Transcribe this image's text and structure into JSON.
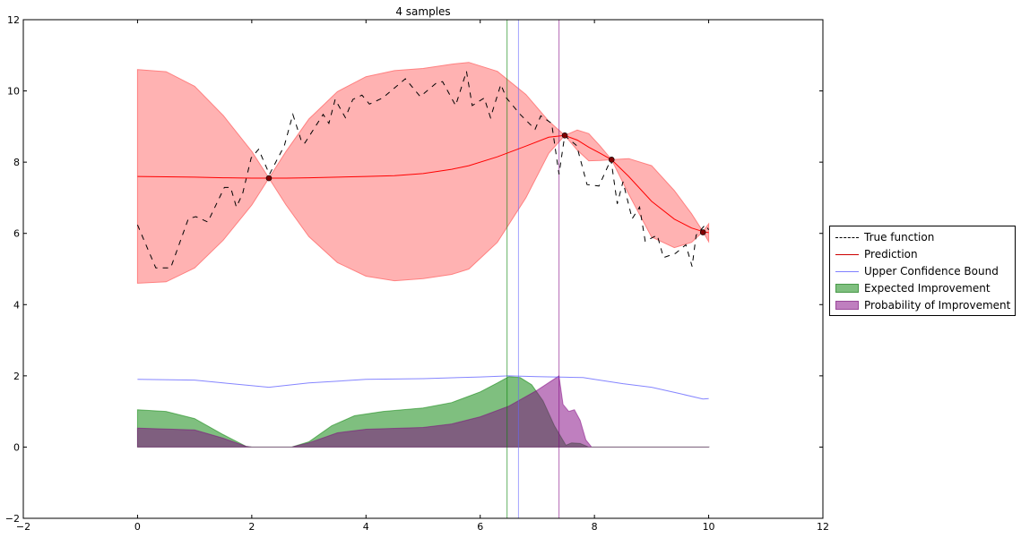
{
  "chart_data": {
    "type": "line",
    "title": "4 samples",
    "xlabel": "",
    "ylabel": "",
    "xlim": [
      -2,
      12
    ],
    "ylim": [
      -2,
      12
    ],
    "xticks": [
      "−2",
      "0",
      "2",
      "4",
      "6",
      "8",
      "10",
      "12"
    ],
    "yticks": [
      "−2",
      "0",
      "2",
      "4",
      "6",
      "8",
      "10",
      "12"
    ],
    "xtick_values": [
      -2,
      0,
      2,
      4,
      6,
      8,
      10,
      12
    ],
    "ytick_values": [
      -2,
      0,
      2,
      4,
      6,
      8,
      10,
      12
    ],
    "grid": false,
    "legend_placement": "right",
    "colors": {
      "true": "#000000",
      "pred": "#ff0000",
      "band": "#ff6666",
      "ucb": "#6666ff",
      "ei": "#008000",
      "pi": "#800080",
      "sample": "#800000"
    },
    "true_function": {
      "name": "True function",
      "x": [
        0,
        0.32,
        0.58,
        0.89,
        1.02,
        1.23,
        1.52,
        1.63,
        1.73,
        1.84,
        1.99,
        2.12,
        2.31,
        2.57,
        2.72,
        2.88,
        2.93,
        3.25,
        3.35,
        3.46,
        3.64,
        3.77,
        3.93,
        4.06,
        4.29,
        4.69,
        4.95,
        5.23,
        5.34,
        5.57,
        5.76,
        5.86,
        6.07,
        6.18,
        6.36,
        6.46,
        6.7,
        6.96,
        7.06,
        7.25,
        7.38,
        7.48,
        7.69,
        7.87,
        8.08,
        8.29,
        8.4,
        8.5,
        8.66,
        8.79,
        8.89,
        9.1,
        9.21,
        9.42,
        9.6,
        9.71,
        9.78,
        9.94,
        10
      ],
      "y": [
        6.24,
        5.03,
        5.03,
        6.41,
        6.47,
        6.32,
        7.29,
        7.29,
        6.74,
        7.12,
        8.12,
        8.36,
        7.66,
        8.46,
        9.34,
        8.54,
        8.54,
        9.34,
        9.09,
        9.76,
        9.25,
        9.76,
        9.88,
        9.63,
        9.8,
        10.34,
        9.84,
        10.22,
        10.26,
        9.59,
        10.55,
        9.59,
        9.8,
        9.25,
        10.18,
        9.8,
        9.34,
        8.92,
        9.3,
        9.09,
        7.66,
        8.75,
        8.46,
        7.37,
        7.33,
        8.08,
        6.83,
        7.45,
        6.41,
        6.74,
        5.78,
        5.95,
        5.32,
        5.44,
        5.68,
        5.07,
        5.95,
        6.24,
        6.1
      ]
    },
    "prediction": {
      "name": "Prediction",
      "x": [
        0,
        0.5,
        1,
        1.5,
        2,
        2.3,
        2.6,
        3,
        3.5,
        4,
        4.5,
        5,
        5.5,
        5.8,
        6.3,
        6.8,
        7.2,
        7.48,
        7.7,
        7.9,
        8.1,
        8.3,
        8.6,
        9,
        9.4,
        9.7,
        9.9,
        10
      ],
      "mean": [
        7.6,
        7.59,
        7.58,
        7.56,
        7.55,
        7.55,
        7.55,
        7.56,
        7.58,
        7.6,
        7.62,
        7.68,
        7.8,
        7.9,
        8.15,
        8.45,
        8.7,
        8.75,
        8.62,
        8.42,
        8.25,
        8.07,
        7.6,
        6.9,
        6.4,
        6.15,
        6.05,
        6.02
      ],
      "std": [
        3.0,
        2.95,
        2.55,
        1.75,
        0.75,
        0,
        0.75,
        1.65,
        2.4,
        2.8,
        2.95,
        2.95,
        2.95,
        2.9,
        2.4,
        1.45,
        0.45,
        0,
        0.28,
        0.38,
        0.2,
        0,
        0.5,
        1.0,
        0.8,
        0.4,
        0,
        0.25
      ]
    },
    "samples": {
      "x": [
        2.3,
        7.48,
        8.3,
        9.9
      ],
      "y": [
        7.55,
        8.75,
        8.07,
        6.03
      ]
    },
    "ucb": {
      "name": "Upper Confidence Bound",
      "x": [
        0,
        1,
        1.5,
        2.3,
        3,
        4,
        5,
        6,
        6.5,
        7,
        7.5,
        7.8,
        8,
        8.5,
        9,
        9.5,
        9.9,
        10
      ],
      "y": [
        1.9,
        1.88,
        1.8,
        1.68,
        1.8,
        1.9,
        1.92,
        1.97,
        2.0,
        1.98,
        1.96,
        1.95,
        1.9,
        1.78,
        1.68,
        1.5,
        1.35,
        1.36
      ]
    },
    "ei": {
      "name": "Expected Improvement",
      "x": [
        0,
        0.5,
        1,
        1.5,
        1.9,
        2,
        2.7,
        3,
        3.4,
        3.8,
        4.3,
        5,
        5.5,
        6,
        6.3,
        6.5,
        6.7,
        6.9,
        7.1,
        7.3,
        7.5,
        7.6,
        7.75,
        7.9,
        10
      ],
      "y": [
        1.05,
        1.0,
        0.8,
        0.35,
        0.02,
        0,
        0,
        0.15,
        0.6,
        0.88,
        1.0,
        1.1,
        1.25,
        1.55,
        1.8,
        1.98,
        1.95,
        1.75,
        1.3,
        0.6,
        0.05,
        0.12,
        0.1,
        0,
        0
      ]
    },
    "pi": {
      "name": "Probability of Improvement",
      "x": [
        0,
        1,
        1.5,
        1.9,
        2,
        2.7,
        3,
        3.5,
        4,
        5,
        5.5,
        6,
        6.5,
        7,
        7.38,
        7.45,
        7.55,
        7.65,
        7.75,
        7.85,
        7.95,
        10
      ],
      "y": [
        0.53,
        0.48,
        0.25,
        0.02,
        0,
        0,
        0.12,
        0.4,
        0.5,
        0.55,
        0.65,
        0.85,
        1.15,
        1.6,
        2.0,
        1.2,
        1.0,
        1.05,
        0.75,
        0.2,
        0,
        0
      ]
    },
    "vlines": [
      {
        "x": 6.47,
        "color": "#008000"
      },
      {
        "x": 6.67,
        "color": "#6666ff"
      },
      {
        "x": 7.38,
        "color": "#800080"
      }
    ]
  }
}
